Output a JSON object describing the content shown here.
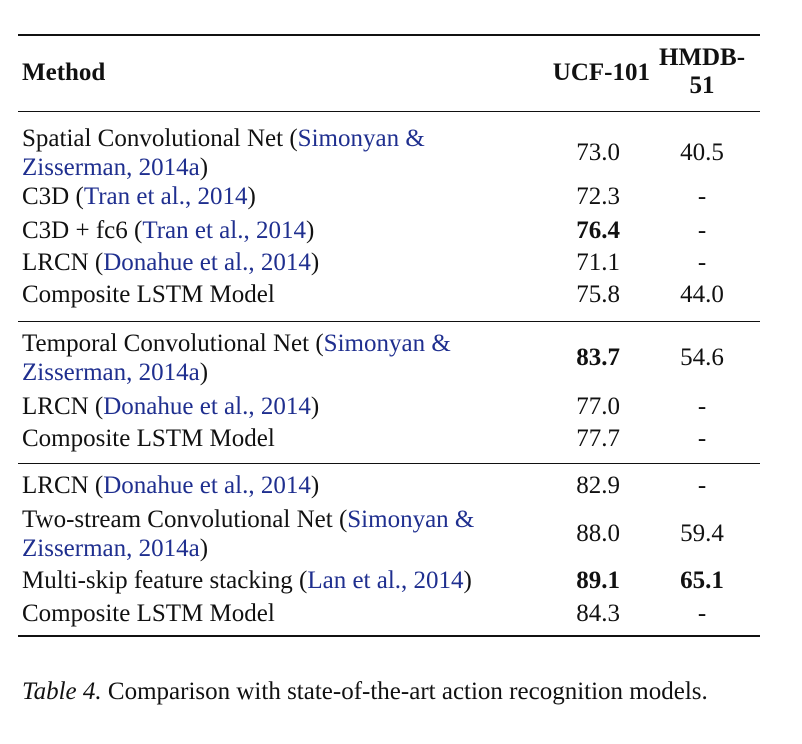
{
  "header": {
    "method": "Method",
    "ucf": "UCF-101",
    "hmdb": "HMDB-51"
  },
  "groups": [
    {
      "rows": [
        {
          "method": "Spatial Convolutional Net (",
          "cite": "Simonyan &",
          "cite2": "Zisserman, 2014a",
          "tail": ")",
          "ucf": "73.0",
          "hmdb": "40.5"
        },
        {
          "method": "C3D (",
          "cite": "Tran et al., 2014",
          "tail": ")",
          "ucf": "72.3",
          "hmdb": "-"
        },
        {
          "method": "C3D + fc6 (",
          "cite": "Tran et al., 2014",
          "tail": ")",
          "ucf": "76.4",
          "hmdb": "-"
        },
        {
          "method": "LRCN (",
          "cite": "Donahue et al., 2014",
          "tail": ")",
          "ucf": "71.1",
          "hmdb": "-"
        },
        {
          "method": "Composite LSTM Model",
          "ucf": "75.8",
          "hmdb": "44.0"
        }
      ]
    },
    {
      "rows": [
        {
          "method": "Temporal Convolutional Net (",
          "cite": "Simonyan &",
          "cite2": "Zisserman, 2014a",
          "tail": ")",
          "ucf": "83.7",
          "hmdb": "54.6"
        },
        {
          "method": "LRCN (",
          "cite": "Donahue et al., 2014",
          "tail": ")",
          "ucf": "77.0",
          "hmdb": "-"
        },
        {
          "method": "Composite LSTM Model",
          "ucf": "77.7",
          "hmdb": "-"
        }
      ]
    },
    {
      "rows": [
        {
          "method": "LRCN (",
          "cite": "Donahue et al., 2014",
          "tail": ")",
          "ucf": "82.9",
          "hmdb": "-"
        },
        {
          "method": "Two-stream Convolutional Net (",
          "cite": "Simonyan &",
          "cite2": "Zisserman, 2014a",
          "tail": ")",
          "ucf": "88.0",
          "hmdb": "59.4"
        },
        {
          "method": "Multi-skip feature stacking (",
          "cite": "Lan et al., 2014",
          "tail": ")",
          "ucf": "89.1",
          "hmdb": "65.1"
        },
        {
          "method": "Composite LSTM Model",
          "ucf": "84.3",
          "hmdb": "-"
        }
      ]
    }
  ],
  "caption": {
    "label": "Table 4.",
    "text": " Comparison with state-of-the-art action recognition models."
  }
}
